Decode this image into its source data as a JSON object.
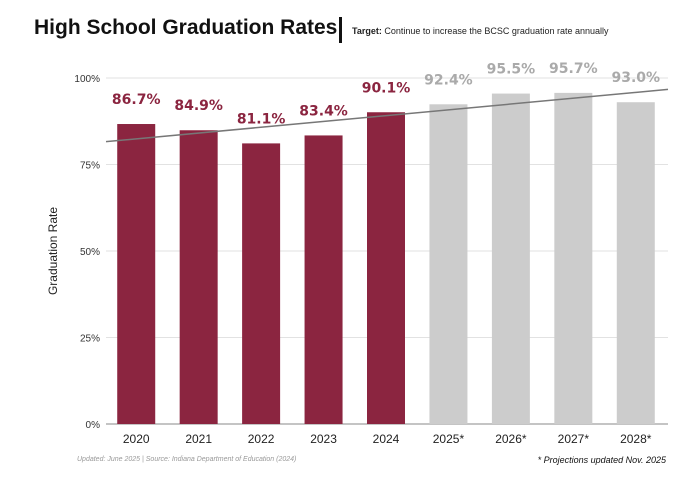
{
  "header": {
    "title": "High School Graduation Rates",
    "target_label": "Target:",
    "target_text": "Continue to increase the BCSC graduation rate annually"
  },
  "footer": {
    "left": "Updated: June 2025 |  Source: Indiana Department of Education (2024)",
    "right": "* Projections updated Nov. 2025"
  },
  "chart_data": {
    "type": "bar",
    "ylabel": "Graduation Rate",
    "ylim": [
      0,
      100
    ],
    "yticks": [
      "0%",
      "25%",
      "50%",
      "75%",
      "100%"
    ],
    "grid": true,
    "categories": [
      "2020",
      "2021",
      "2022",
      "2023",
      "2024",
      "2025*",
      "2026*",
      "2027*",
      "2028*"
    ],
    "values": [
      86.7,
      84.9,
      81.1,
      83.4,
      90.1,
      92.4,
      95.5,
      95.7,
      93.0
    ],
    "labels": [
      "86.7%",
      "84.9%",
      "81.1%",
      "83.4%",
      "90.1%",
      "92.4%",
      "95.5%",
      "95.7%",
      "93.0%"
    ],
    "projected": [
      false,
      false,
      false,
      false,
      false,
      true,
      true,
      true,
      true
    ],
    "trendline": {
      "start": 81.6,
      "end": 96.7
    },
    "colors": {
      "actual": "#8b2540",
      "projected": "#cccccc",
      "trend": "#777777"
    }
  }
}
